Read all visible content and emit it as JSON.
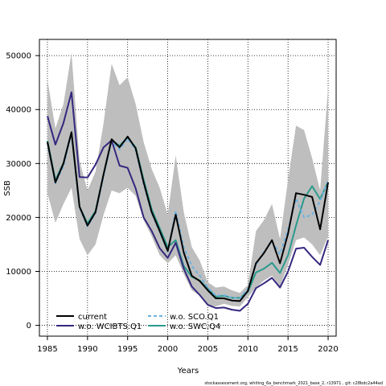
{
  "chart_data": {
    "type": "line",
    "xlabel": "Years",
    "ylabel": "SSB",
    "xlim": [
      1984,
      2021
    ],
    "ylim": [
      -2000,
      53000
    ],
    "x_ticks": [
      1985,
      1990,
      1995,
      2000,
      2005,
      2010,
      2015,
      2020
    ],
    "y_ticks": [
      0,
      10000,
      20000,
      30000,
      40000,
      50000
    ],
    "grid": true,
    "grid_style": "dotted",
    "legend_position": "bottom-left",
    "x": [
      1985,
      1986,
      1987,
      1988,
      1989,
      1990,
      1991,
      1992,
      1993,
      1994,
      1995,
      1996,
      1997,
      1998,
      1999,
      2000,
      2001,
      2002,
      2003,
      2004,
      2005,
      2006,
      2007,
      2008,
      2009,
      2010,
      2011,
      2012,
      2013,
      2014,
      2015,
      2016,
      2017,
      2018,
      2019,
      2020
    ],
    "band": {
      "upper": [
        45500,
        36500,
        41000,
        50500,
        30500,
        25000,
        28500,
        37500,
        48500,
        44500,
        46000,
        41000,
        34000,
        29000,
        25500,
        20500,
        31500,
        21000,
        14500,
        12000,
        8000,
        7000,
        7200,
        6500,
        6000,
        7500,
        17500,
        19500,
        22500,
        16000,
        27000,
        37000,
        36200,
        31000,
        25000,
        44000
      ],
      "lower": [
        24500,
        19000,
        22500,
        25500,
        16000,
        13000,
        15000,
        20500,
        25000,
        24500,
        25500,
        24000,
        19500,
        16500,
        13000,
        11500,
        13000,
        9500,
        6500,
        5500,
        3800,
        3500,
        4000,
        3600,
        3500,
        5200,
        7000,
        8300,
        9200,
        7200,
        11200,
        15800,
        16300,
        15000,
        13000,
        16500
      ],
      "color": "#bebebe"
    },
    "series": [
      {
        "name": "current",
        "color": "#000000",
        "style": "solid",
        "values": [
          34000,
          26500,
          30000,
          35800,
          22000,
          18500,
          21000,
          28000,
          34500,
          33000,
          35000,
          32800,
          26500,
          21000,
          17500,
          13800,
          20500,
          13500,
          9200,
          8200,
          6500,
          5000,
          5000,
          4600,
          4500,
          6400,
          11500,
          13400,
          15800,
          11500,
          17000,
          24500,
          24200,
          23800,
          17800,
          26500
        ]
      },
      {
        "name": "w.o. WCIBTS.Q1",
        "color": "#34287f",
        "style": "solid",
        "values": [
          38800,
          33500,
          37500,
          43200,
          27500,
          27400,
          29800,
          33000,
          34300,
          29600,
          29200,
          25400,
          20000,
          17500,
          14300,
          12500,
          15300,
          10500,
          7200,
          5600,
          3800,
          3200,
          3300,
          2900,
          2700,
          4000,
          6900,
          7800,
          8800,
          7000,
          10000,
          14200,
          14400,
          12700,
          11200,
          15800
        ]
      },
      {
        "name": "w.o. SCO.Q1",
        "color": "#6fb2e0",
        "style": "dashed",
        "values": [
          33800,
          26300,
          29500,
          35500,
          21800,
          18300,
          20800,
          27700,
          34100,
          32600,
          34600,
          32500,
          26200,
          20800,
          17300,
          13600,
          21200,
          14500,
          11000,
          9200,
          7000,
          5500,
          5600,
          5100,
          5000,
          6800,
          11200,
          13600,
          15600,
          13200,
          17800,
          23500,
          20000,
          20500,
          23000,
          26800
        ]
      },
      {
        "name": "w.o. SWC.Q4",
        "color": "#2a9a8c",
        "style": "solid",
        "values": [
          34200,
          26900,
          30100,
          35800,
          22000,
          18900,
          21200,
          28000,
          34300,
          33300,
          34800,
          33000,
          27000,
          21500,
          18000,
          14500,
          15800,
          11000,
          9000,
          8300,
          6800,
          5300,
          5500,
          5100,
          5100,
          6200,
          9800,
          10500,
          11600,
          9700,
          13000,
          18500,
          23500,
          25800,
          23400,
          26600
        ]
      }
    ]
  },
  "footer": {
    "text": "stockassessment.org, whiting_6a_benchmark_2021_base_2, r13971 , git: c28bdc2a44ad"
  }
}
